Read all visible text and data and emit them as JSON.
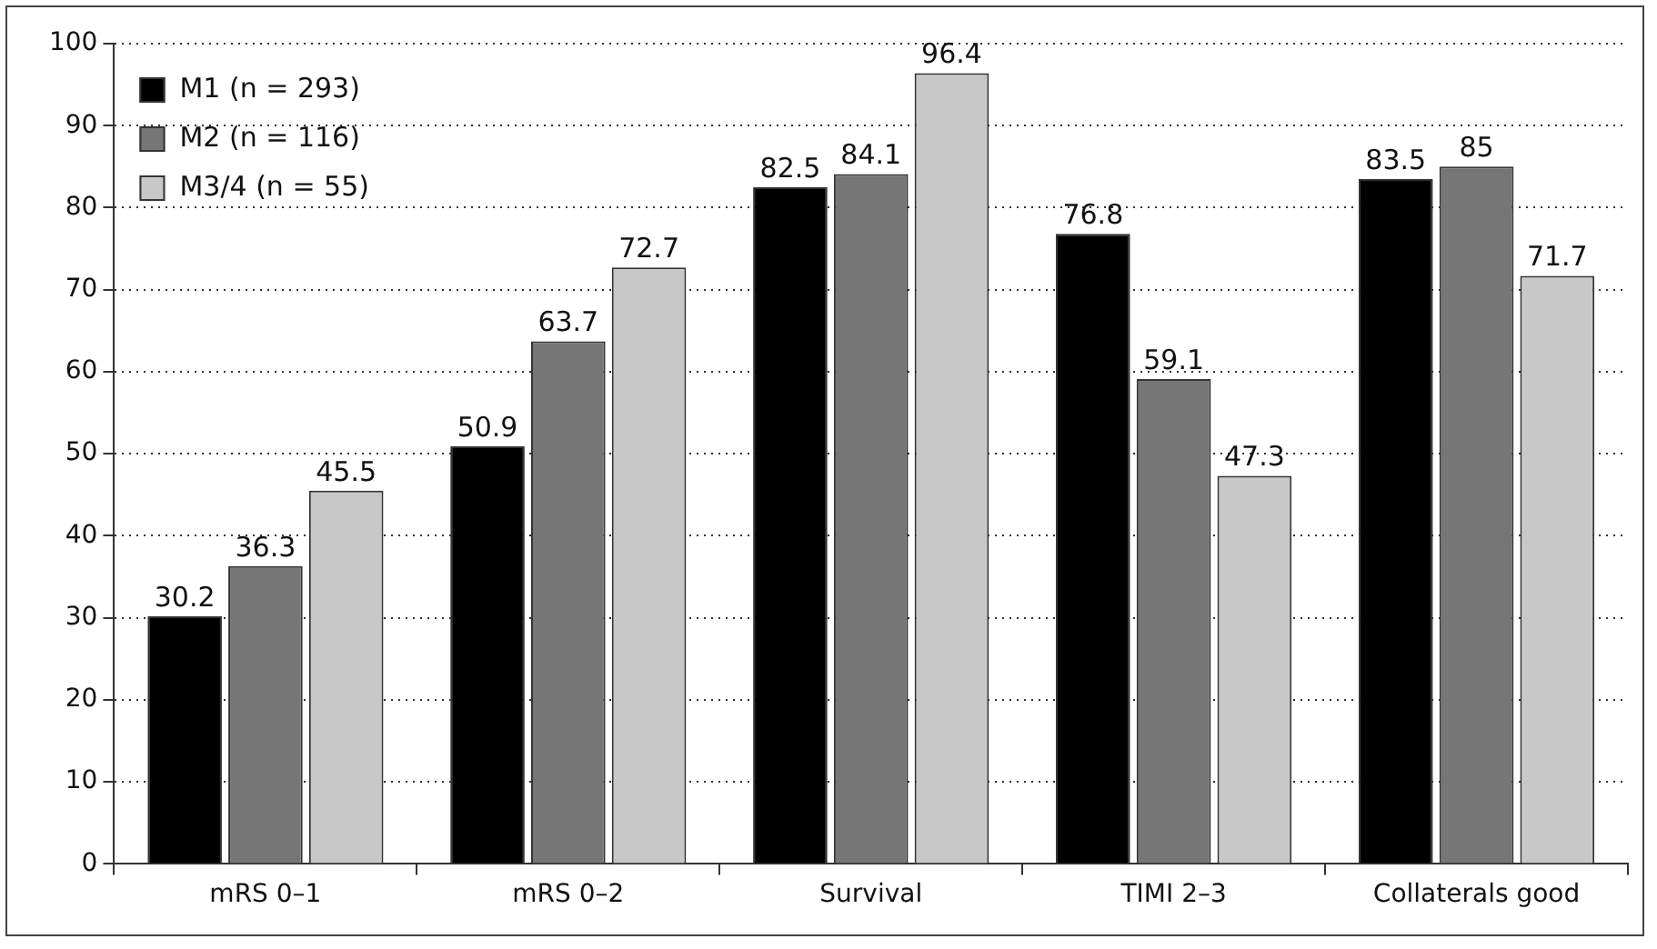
{
  "chart_data": {
    "type": "bar",
    "categories": [
      "mRS 0–1",
      "mRS 0–2",
      "Survival",
      "TIMI 2–3",
      "Collaterals good"
    ],
    "series": [
      {
        "name": "M1 (n = 293)",
        "color": "#000000",
        "values": [
          30.2,
          50.9,
          82.5,
          76.8,
          83.5
        ]
      },
      {
        "name": "M2 (n = 116)",
        "color": "#767676",
        "values": [
          36.3,
          63.7,
          84.1,
          59.1,
          85
        ]
      },
      {
        "name": "M3/4 (n = 55)",
        "color": "#c8c8c8",
        "values": [
          45.5,
          72.7,
          96.4,
          47.3,
          71.7
        ]
      }
    ],
    "ylim": [
      0,
      100
    ],
    "yticks": [
      0,
      10,
      20,
      30,
      40,
      50,
      60,
      70,
      80,
      90,
      100
    ],
    "grid": "y",
    "legend": "top left",
    "data_labels": true
  }
}
